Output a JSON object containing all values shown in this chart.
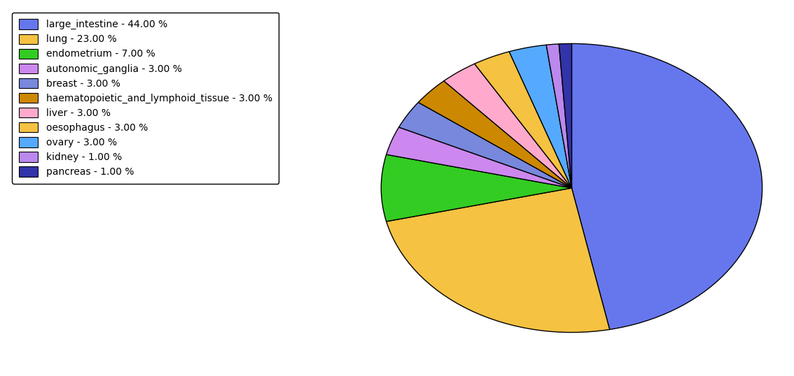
{
  "labels": [
    "large_intestine",
    "lung",
    "endometrium",
    "autonomic_ganglia",
    "breast",
    "haematopoietic_and_lymphoid_tissue",
    "liver",
    "oesophagus",
    "ovary",
    "kidney",
    "pancreas"
  ],
  "values": [
    44,
    23,
    7,
    3,
    3,
    3,
    3,
    3,
    3,
    1,
    1
  ],
  "colors": [
    "#6677ee",
    "#f5c242",
    "#33cc22",
    "#cc88ee",
    "#7788dd",
    "#cc8800",
    "#ffaacc",
    "#f5c242",
    "#55aaff",
    "#bb88ee",
    "#3333aa"
  ],
  "legend_labels": [
    "large_intestine - 44.00 %",
    "lung - 23.00 %",
    "endometrium - 7.00 %",
    "autonomic_ganglia - 3.00 %",
    "breast - 3.00 %",
    "haematopoietic_and_lymphoid_tissue - 3.00 %",
    "liver - 3.00 %",
    "oesophagus - 3.00 %",
    "ovary - 3.00 %",
    "kidney - 1.00 %",
    "pancreas - 1.00 %"
  ],
  "legend_colors": [
    "#6677ee",
    "#f5c242",
    "#33cc22",
    "#cc88ee",
    "#7788dd",
    "#cc8800",
    "#ffaacc",
    "#f5c242",
    "#55aaff",
    "#bb88ee",
    "#3333aa"
  ],
  "startangle": 90,
  "figure_width": 11.34,
  "figure_height": 5.38,
  "dpi": 100
}
